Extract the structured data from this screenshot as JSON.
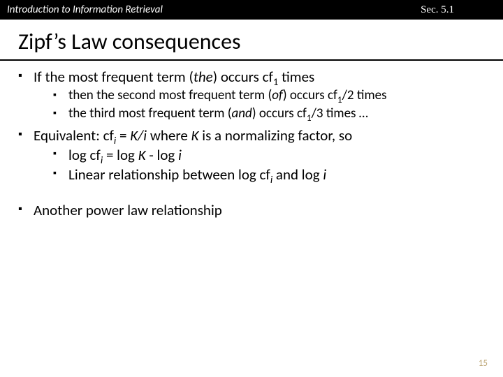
{
  "header": {
    "left": "Introduction to Information Retrieval",
    "right": "Sec. 5.1"
  },
  "title": "Zipf’s Law consequences",
  "bullets": {
    "b1_pre": "If the most frequent term (",
    "b1_the": "the",
    "b1_post": ") occurs cf",
    "b1_sub": "1",
    "b1_tail": " times",
    "b1a_pre": "then the second most frequent term (",
    "b1a_of": "of",
    "b1a_post": ") occurs cf",
    "b1a_sub": "1",
    "b1a_tail": "/2 times",
    "b1b_pre": "the third most frequent term (",
    "b1b_and": "and",
    "b1b_post": ") occurs cf",
    "b1b_sub": "1",
    "b1b_tail": "/3 times …",
    "b2_pre": "Equivalent: cf",
    "b2_sub": "i",
    "b2_mid": " = ",
    "b2_ki": "K/i",
    "b2_post": " where ",
    "b2_k": "K",
    "b2_tail": " is a normalizing factor, so",
    "b2a_pre": "log cf",
    "b2a_sub": "i",
    "b2a_mid": " = log ",
    "b2a_k": "K",
    "b2a_mid2": " - log ",
    "b2a_i": "i",
    "b2b_pre": "Linear relationship between log cf",
    "b2b_sub": "i",
    "b2b_mid": " and log ",
    "b2b_i": "i",
    "b3": "Another power law relationship"
  },
  "slide_number": "15",
  "colors": {
    "header_bg": "#000000",
    "header_fg": "#ffffff",
    "text": "#000000",
    "slidenum": "#bfa97a"
  }
}
